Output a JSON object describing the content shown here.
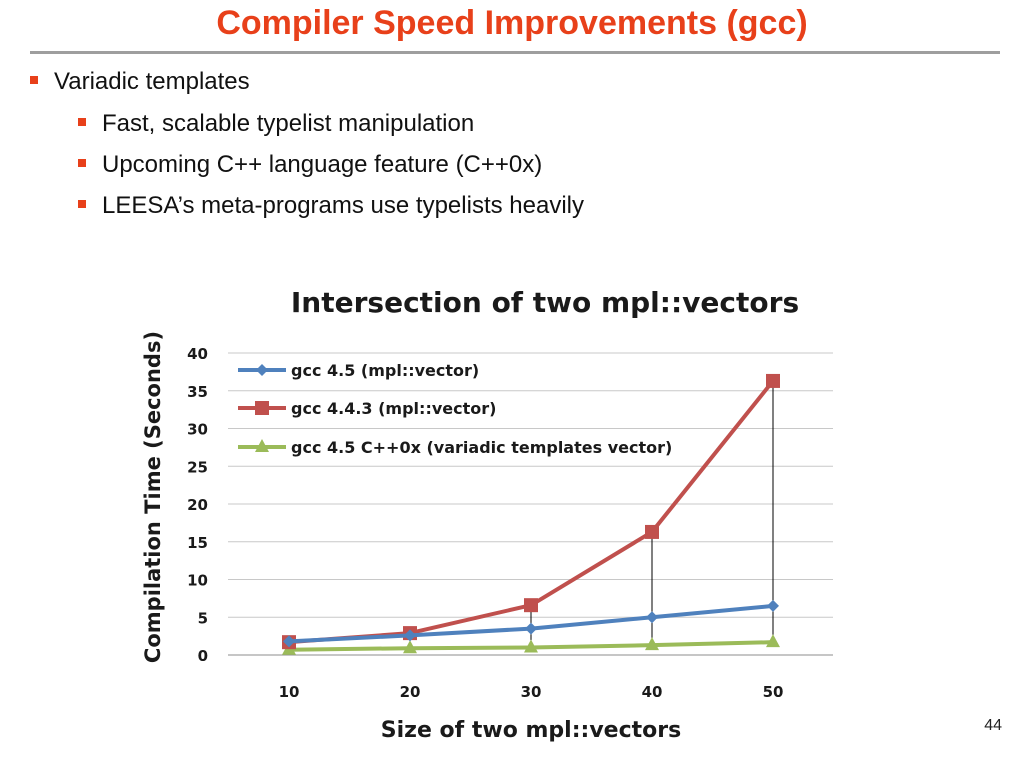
{
  "slide": {
    "title": "Compiler Speed Improvements (gcc)",
    "bullets": [
      {
        "text": "Variadic templates",
        "level": 1
      },
      {
        "text": "Fast, scalable typelist manipulation",
        "level": 2
      },
      {
        "text": "Upcoming C++ language feature (C++0x)",
        "level": 2
      },
      {
        "text": "LEESA’s meta-programs use typelists heavily",
        "level": 2
      }
    ],
    "page_number": "44",
    "accent_color": "#e8401a"
  },
  "chart_data": {
    "type": "line",
    "title": "Intersection of two mpl::vectors",
    "xlabel": "Size of two mpl::vectors",
    "ylabel": "Compilation Time (Seconds)",
    "categories": [
      "10",
      "20",
      "30",
      "40",
      "50"
    ],
    "ylim": [
      0,
      40
    ],
    "yticks": [
      0,
      5,
      10,
      15,
      20,
      25,
      30,
      35,
      40
    ],
    "grid": true,
    "legend_position": "top-left",
    "series": [
      {
        "name": "gcc 4.5 (mpl::vector)",
        "values": [
          1.8,
          2.6,
          3.5,
          5.0,
          6.5
        ],
        "color": "#4f81bd",
        "marker": "diamond"
      },
      {
        "name": "gcc 4.4.3 (mpl::vector)",
        "values": [
          1.7,
          2.9,
          6.6,
          16.3,
          36.3
        ],
        "color": "#c0504d",
        "marker": "square"
      },
      {
        "name": "gcc 4.5 C++0x (variadic templates vector)",
        "values": [
          0.7,
          0.9,
          1.0,
          1.3,
          1.7
        ],
        "color": "#9bbb59",
        "marker": "triangle"
      }
    ]
  }
}
